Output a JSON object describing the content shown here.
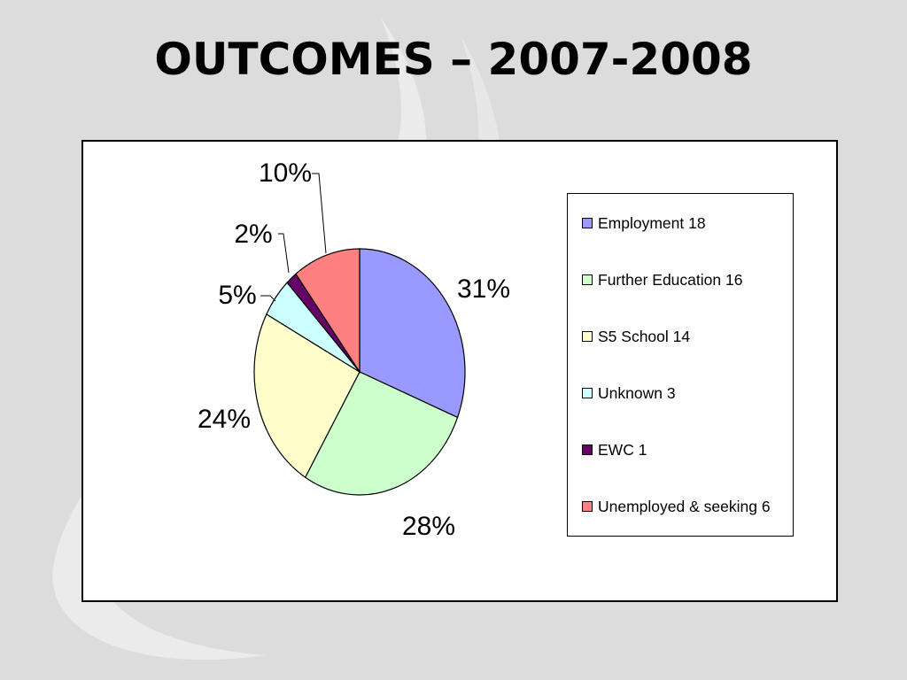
{
  "slide": {
    "title": "OUTCOMES – 2007-2008"
  },
  "chart_data": {
    "type": "pie",
    "slices": [
      {
        "name": "Employment 18",
        "value": 18,
        "label": "31%",
        "color": "#9999ff"
      },
      {
        "name": "Further Education 16",
        "value": 16,
        "label": "28%",
        "color": "#ccffcc"
      },
      {
        "name": "S5 School 14",
        "value": 14,
        "label": "24%",
        "color": "#ffffcc"
      },
      {
        "name": "Unknown 3",
        "value": 3,
        "label": "5%",
        "color": "#ccffff"
      },
      {
        "name": "EWC 1",
        "value": 1,
        "label": "2%",
        "color": "#660066"
      },
      {
        "name": "Unemployed & seeking 6",
        "value": 6,
        "label": "10%",
        "color": "#ff8080"
      }
    ],
    "legend_position": "right"
  }
}
